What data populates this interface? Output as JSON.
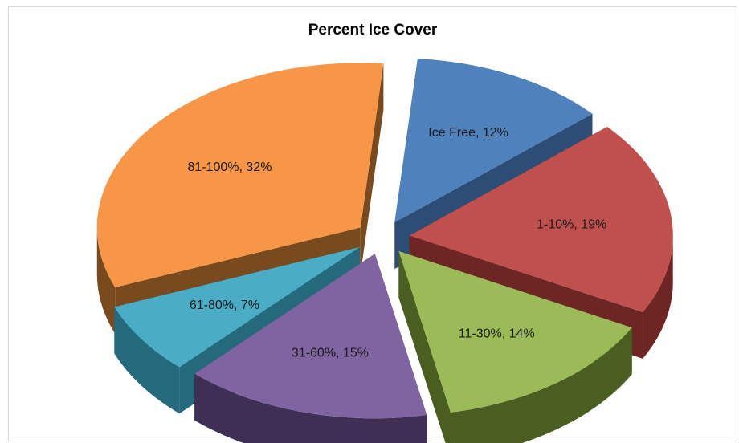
{
  "chart_data": {
    "type": "pie",
    "title": "Percent Ice Cover",
    "slices": [
      {
        "label": "Ice Free, 12%",
        "value": 12,
        "color": "#4f81bd",
        "side": "#2c4d75"
      },
      {
        "label": "1-10%, 19%",
        "value": 19,
        "color": "#c0504d",
        "side": "#6e2624"
      },
      {
        "label": "11-30%, 14%",
        "value": 14,
        "color": "#9bbb59",
        "side": "#4a5e22"
      },
      {
        "label": "31-60%, 15%",
        "value": 15,
        "color": "#8064a2",
        "side": "#3f2f55"
      },
      {
        "label": "61-80%, 7%",
        "value": 7,
        "color": "#4bacc6",
        "side": "#24697c"
      },
      {
        "label": "81-100%, 32%",
        "value": 32,
        "color": "#f79646",
        "side": "#7a4a1f"
      }
    ],
    "legend": "none"
  }
}
